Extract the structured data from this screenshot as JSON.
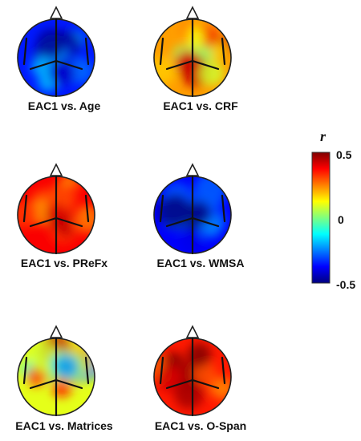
{
  "maps": [
    {
      "label": "EAC1 vs. Age",
      "dominant_r": -0.35,
      "variation": 0.12
    },
    {
      "label": "EAC1 vs. CRF",
      "dominant_r": 0.22,
      "variation": 0.16
    },
    {
      "label": "EAC1 vs. PReFx",
      "dominant_r": 0.38,
      "variation": 0.1
    },
    {
      "label": "EAC1 vs. WMSA",
      "dominant_r": -0.38,
      "variation": 0.1
    },
    {
      "label": "EAC1 vs. Matrices",
      "dominant_r": 0.1,
      "variation": 0.22
    },
    {
      "label": "EAC1 vs. O-Span",
      "dominant_r": 0.35,
      "variation": 0.12
    }
  ],
  "colorbar": {
    "title": "r",
    "ticks": [
      "0.5",
      "0",
      "-0.5"
    ],
    "range": [
      -0.5,
      0.5
    ],
    "colors": [
      "#00007f",
      "#0000ff",
      "#007fff",
      "#00ffff",
      "#7fff7f",
      "#ffff00",
      "#ff7f00",
      "#ff0000",
      "#7f0000"
    ]
  }
}
